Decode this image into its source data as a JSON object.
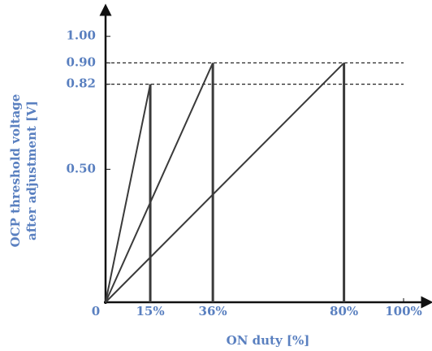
{
  "chart_data": {
    "type": "line",
    "y_label_lines": [
      "OCP threshold voltage",
      "after adjustment [V]"
    ],
    "x_label": "ON duty [%]",
    "label_color": "#5a80c0",
    "line_color": "#3a3a3a",
    "xlim": [
      0,
      100
    ],
    "ylim": [
      0,
      1.1
    ],
    "xticks": [
      0,
      {
        "value": 15,
        "label": "15%"
      },
      {
        "value": 36,
        "label": "36%"
      },
      {
        "value": 80,
        "label": "80%"
      },
      {
        "value": 100,
        "label": "100%"
      }
    ],
    "yticks": [
      {
        "value": 0.5,
        "label": "0.50"
      },
      {
        "value": 0.82,
        "label": "0.82"
      },
      {
        "value": 0.9,
        "label": "0.90"
      },
      {
        "value": 1,
        "label": "1.00"
      }
    ],
    "series": [
      {
        "x": [
          0,
          15
        ],
        "values": [
          0,
          0.82
        ]
      },
      {
        "x": [
          0,
          36
        ],
        "values": [
          0,
          0.9
        ]
      },
      {
        "x": [
          0,
          80
        ],
        "values": [
          0,
          0.9
        ]
      }
    ]
  }
}
